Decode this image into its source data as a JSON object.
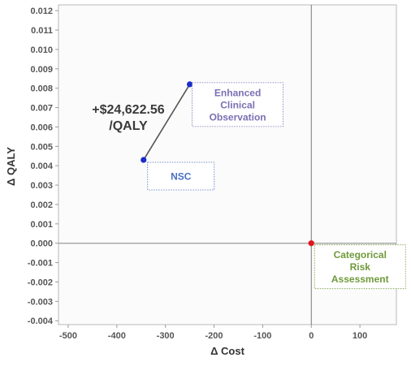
{
  "chart_data": {
    "type": "scatter",
    "xlabel": "Δ Cost",
    "ylabel": "Δ QALY",
    "xlim": [
      -520,
      175
    ],
    "ylim": [
      -0.0042,
      0.0123
    ],
    "x_ticks": [
      -500,
      -400,
      -300,
      -200,
      -100,
      0,
      100
    ],
    "x_tick_labels": [
      "-500",
      "-400",
      "-300",
      "-200",
      "-100",
      "0",
      "100"
    ],
    "y_ticks": [
      0.012,
      0.011,
      0.01,
      0.009,
      0.008,
      0.007,
      0.006,
      0.005,
      0.004,
      0.003,
      0.002,
      0.001,
      0.0,
      -0.001,
      -0.002,
      -0.003,
      -0.004
    ],
    "y_tick_labels": [
      "0.012",
      "0.011",
      "0.010",
      "0.009",
      "0.008",
      "0.007",
      "0.006",
      "0.005",
      "0.004",
      "0.003",
      "0.002",
      "0.001",
      "0.000",
      "-0.001",
      "-0.002",
      "-0.003",
      "-0.004"
    ],
    "points": [
      {
        "name": "NSC",
        "x": -345,
        "y": 0.0043,
        "color": "#1a2ccc",
        "label_color": "#4a6fc2"
      },
      {
        "name": "Enhanced Clinical Observation",
        "x": -250,
        "y": 0.0082,
        "color": "#1a2ccc",
        "label_color": "#7b6fb3"
      },
      {
        "name": "Categorical Risk Assessment",
        "x": 0,
        "y": 0.0,
        "color": "#e0141c",
        "label_color": "#6f9a3a"
      }
    ],
    "point_labels": [
      {
        "lines": [
          "NSC"
        ]
      },
      {
        "lines": [
          "Enhanced",
          "Clinical",
          "Observation"
        ]
      },
      {
        "lines": [
          "Categorical",
          "Risk",
          "Assessment"
        ]
      }
    ],
    "annotation": {
      "lines": [
        "+$24,622.56",
        "/QALY"
      ],
      "color": "#3a3a3a"
    },
    "grid": false
  }
}
